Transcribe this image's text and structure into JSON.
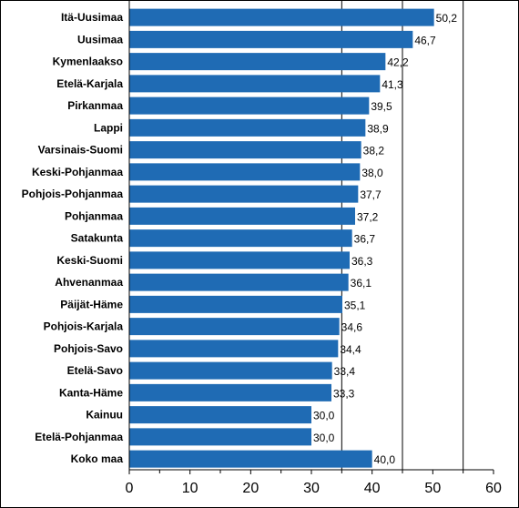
{
  "chart_data": {
    "type": "bar",
    "orientation": "horizontal",
    "categories": [
      "Itä-Uusimaa",
      "Uusimaa",
      "Kymenlaakso",
      "Etelä-Karjala",
      "Pirkanmaa",
      "Lappi",
      "Varsinais-Suomi",
      "Keski-Pohjanmaa",
      "Pohjois-Pohjanmaa",
      "Pohjanmaa",
      "Satakunta",
      "Keski-Suomi",
      "Ahvenanmaa",
      "Päijät-Häme",
      "Pohjois-Karjala",
      "Pohjois-Savo",
      "Etelä-Savo",
      "Kanta-Häme",
      "Kainuu",
      "Etelä-Pohjanmaa",
      "Koko maa"
    ],
    "values": [
      50.2,
      46.7,
      42.2,
      41.3,
      39.5,
      38.9,
      38.2,
      38.0,
      37.7,
      37.2,
      36.7,
      36.3,
      36.1,
      35.1,
      34.6,
      34.4,
      33.4,
      33.3,
      30.0,
      30.0,
      40.0
    ],
    "value_labels": [
      "50,2",
      "46,7",
      "42,2",
      "41,3",
      "39,5",
      "38,9",
      "38,2",
      "38,0",
      "37,7",
      "37,2",
      "36,7",
      "36,3",
      "36,1",
      "35,1",
      "34,6",
      "34,4",
      "33,4",
      "33,3",
      "30,0",
      "30,0",
      "40,0"
    ],
    "x_ticks": [
      0,
      10,
      20,
      30,
      40,
      50,
      60
    ],
    "xlim": [
      0,
      60
    ],
    "reference_lines": [
      35,
      45,
      55
    ],
    "bar_color": "#1f6bb4",
    "title": "",
    "xlabel": "",
    "ylabel": ""
  }
}
